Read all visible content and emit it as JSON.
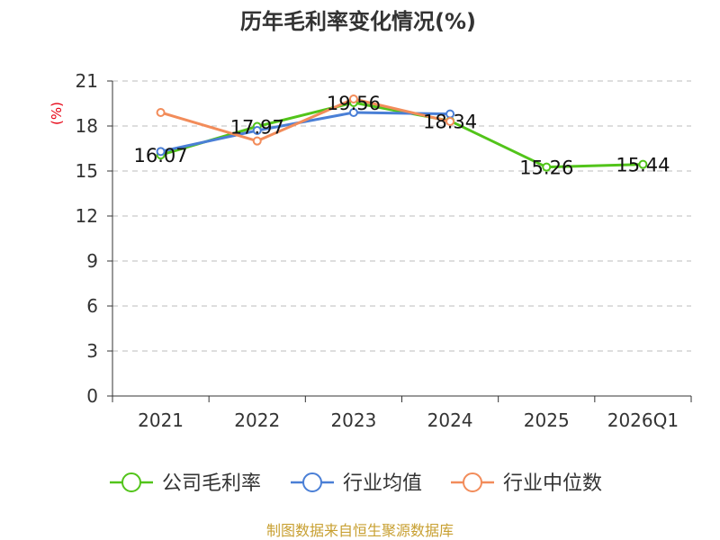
{
  "chart_data": {
    "type": "line",
    "title": "历年毛利率变化情况(%)",
    "ylabel": "(%)",
    "xlabel": "",
    "categories": [
      "2021",
      "2022",
      "2023",
      "2024",
      "2025",
      "2026Q1"
    ],
    "ylim": [
      0,
      21
    ],
    "yticks": [
      0,
      3,
      6,
      9,
      12,
      15,
      18,
      21
    ],
    "grid": true,
    "legend_position": "bottom",
    "series": [
      {
        "name": "公司毛利率",
        "color": "#52c41a",
        "values": [
          16.07,
          17.97,
          19.56,
          18.34,
          15.26,
          15.44
        ],
        "labels": [
          "16.07",
          "17.97",
          "19.56",
          "18.34",
          "15.26",
          "15.44"
        ]
      },
      {
        "name": "行业均值",
        "color": "#4a7fd6",
        "values": [
          16.3,
          17.7,
          18.9,
          18.8,
          null,
          null
        ]
      },
      {
        "name": "行业中位数",
        "color": "#f28c5a",
        "values": [
          18.9,
          17.0,
          19.8,
          18.3,
          null,
          null
        ]
      }
    ]
  },
  "footer": {
    "source": "制图数据来自恒生聚源数据库",
    "source_color": "#c8a032"
  },
  "colors": {
    "axis": "#333333",
    "grid": "#bbbbbb",
    "ylabel": "#e60012",
    "title": "#333333"
  }
}
